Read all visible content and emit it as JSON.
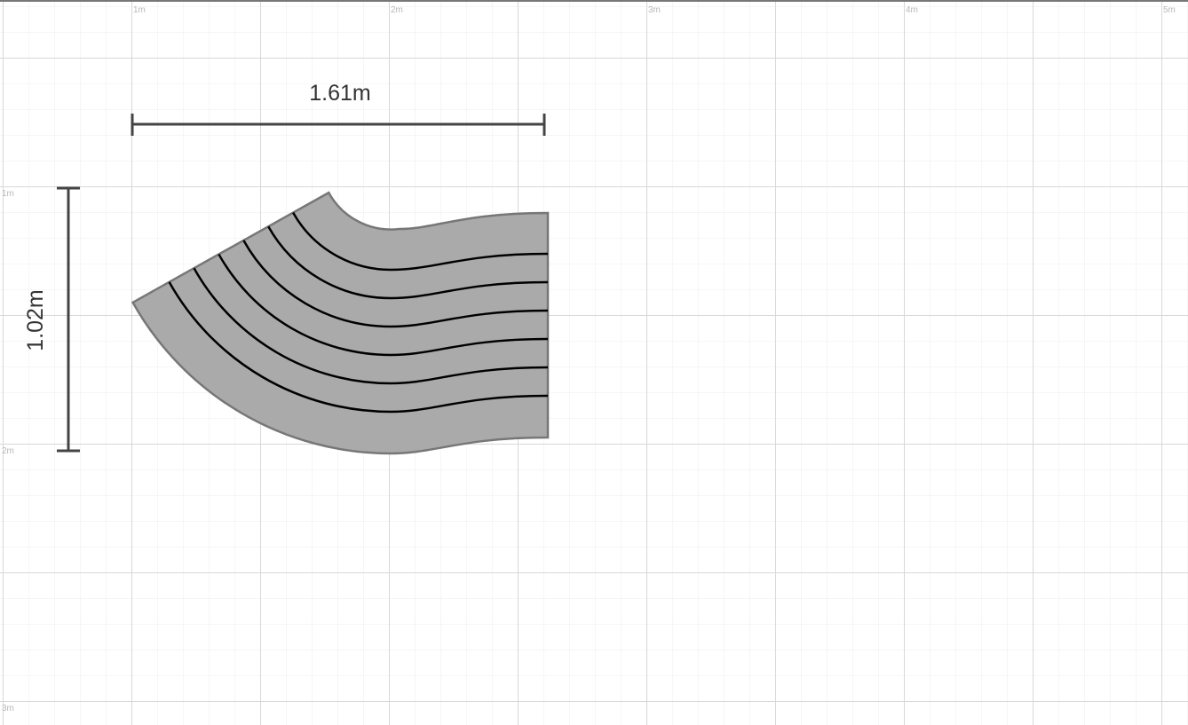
{
  "rulers": {
    "x_labels": [
      "1m",
      "2m",
      "3m",
      "4m",
      "5m"
    ],
    "y_labels": [
      "1m",
      "2m",
      "3m"
    ]
  },
  "dimensions": {
    "width": "1.61m",
    "height": "1.02m"
  },
  "colors": {
    "stair_fill": "#aaaaaa",
    "stair_outline": "#777777",
    "step_line": "#000000",
    "dimension_line": "#444444",
    "grid_minor": "#ececec",
    "grid_major": "#d8d8d8"
  },
  "stair": {
    "type": "curved-staircase",
    "step_lines": 6
  }
}
